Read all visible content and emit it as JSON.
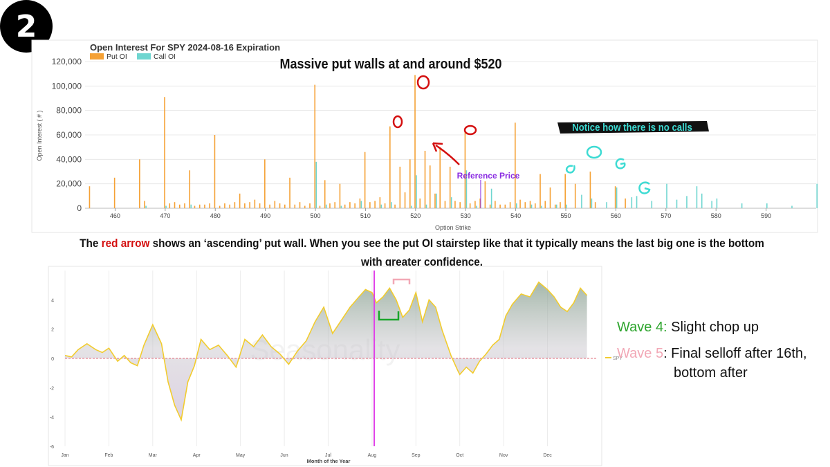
{
  "badge": "2",
  "oi_chart": {
    "title": "Open Interest For SPY 2024-08-16 Expiration",
    "legend": [
      {
        "name": "Put OI",
        "color": "#f5a135"
      },
      {
        "name": "Call OI",
        "color": "#6fd6d0"
      }
    ],
    "ylabel": "Open Interest ( # )",
    "xlabel": "Option Strike",
    "annotations": {
      "headline": "Massive put walls at and around $520",
      "no_calls": "Notice how there is no calls",
      "reference_price": "Reference Price"
    }
  },
  "season_chart": {
    "xlabel": "Month of the Year",
    "legend": "SPY",
    "watermark": "Seasonality"
  },
  "caption": {
    "prefix": "The ",
    "highlight": "red arrow",
    "rest": " shows an ‘ascending’ put wall. When you see the put OI stairstep like that it typically means the last big one is the bottom with greater confidence."
  },
  "waves": {
    "wave4_label": "Wave 4:",
    "wave4_text": " Slight chop up",
    "wave5_label": "Wave 5",
    "wave5_text": ": Final selloff after 16th,",
    "wave5_cont": "bottom after"
  },
  "chart_data": [
    {
      "type": "bar",
      "title": "Open Interest For SPY 2024-08-16 Expiration",
      "xlabel": "Option Strike",
      "ylabel": "Open Interest ( # )",
      "xlim": [
        454,
        600
      ],
      "ylim": [
        0,
        120000
      ],
      "x_ticks": [
        460,
        470,
        480,
        490,
        500,
        510,
        520,
        530,
        540,
        550,
        560,
        570,
        580,
        590
      ],
      "y_ticks": [
        0,
        20000,
        40000,
        60000,
        80000,
        100000,
        120000
      ],
      "legend_position": "top-left",
      "reference_price": 533,
      "series": [
        {
          "name": "Put OI",
          "color": "#f5a135",
          "x": [
            455,
            460,
            465,
            466,
            470,
            471,
            472,
            473,
            474,
            475,
            476,
            477,
            478,
            479,
            480,
            481,
            482,
            483,
            484,
            485,
            486,
            487,
            488,
            489,
            490,
            491,
            492,
            493,
            494,
            495,
            496,
            497,
            498,
            499,
            500,
            501,
            502,
            503,
            504,
            505,
            506,
            507,
            508,
            509,
            510,
            511,
            512,
            513,
            514,
            515,
            516,
            517,
            518,
            519,
            520,
            521,
            522,
            523,
            524,
            525,
            526,
            527,
            528,
            529,
            530,
            531,
            532,
            533,
            534,
            535,
            536,
            537,
            538,
            539,
            540,
            541,
            542,
            543,
            544,
            545,
            546,
            547,
            548,
            549,
            550,
            552,
            555,
            556,
            560,
            562
          ],
          "values": [
            18000,
            25000,
            40000,
            6000,
            91000,
            4000,
            5000,
            3000,
            4000,
            31000,
            2000,
            3000,
            3000,
            4000,
            60000,
            2000,
            4000,
            3000,
            5000,
            12000,
            4000,
            5000,
            7000,
            4000,
            40000,
            3000,
            6000,
            4000,
            3000,
            25000,
            3000,
            5000,
            2000,
            4000,
            101000,
            2000,
            23000,
            4000,
            5000,
            20000,
            3000,
            5000,
            4000,
            8000,
            46000,
            5000,
            6000,
            9000,
            4000,
            67000,
            3000,
            34000,
            13000,
            40000,
            109000,
            8000,
            47000,
            35000,
            12000,
            50000,
            6000,
            34000,
            6000,
            5000,
            63000,
            4000,
            6000,
            8000,
            22000,
            3000,
            6000,
            3000,
            3000,
            5000,
            70000,
            7000,
            5000,
            6000,
            4000,
            28000,
            6000,
            17000,
            3000,
            5000,
            28000,
            20000,
            30000,
            5000,
            18000,
            8000
          ]
        },
        {
          "name": "Call OI",
          "color": "#6fd6d0",
          "x": [
            466,
            470,
            475,
            500,
            502,
            505,
            509,
            513,
            515,
            519,
            520,
            522,
            524,
            527,
            530,
            532,
            535,
            540,
            543,
            545,
            548,
            550,
            553,
            555,
            558,
            560,
            563,
            564,
            567,
            570,
            572,
            574,
            576,
            577,
            579,
            580,
            585,
            590,
            595,
            600
          ],
          "values": [
            2000,
            2000,
            3000,
            38000,
            3000,
            2000,
            6000,
            3000,
            5000,
            2000,
            27000,
            3000,
            12000,
            9000,
            31000,
            2000,
            16000,
            4000,
            3000,
            2000,
            3000,
            3000,
            11000,
            8000,
            5000,
            17000,
            9000,
            10000,
            6000,
            20000,
            7000,
            10000,
            18000,
            12000,
            6000,
            8000,
            4000,
            4000,
            2000,
            20000
          ]
        }
      ]
    },
    {
      "type": "area",
      "xlabel": "Month of the Year",
      "categories": [
        "Jan",
        "Feb",
        "Mar",
        "Apr",
        "May",
        "Jun",
        "Jul",
        "Aug",
        "Sep",
        "Oct",
        "Nov",
        "Dec"
      ],
      "y_ticks": [
        -6,
        -4,
        -2,
        0,
        2,
        4
      ],
      "ylim": [
        -6,
        6
      ],
      "legend_position": "right",
      "highlight_month": 7.05,
      "series": [
        {
          "name": "SPY",
          "color": "#f2cc2e",
          "x": [
            0,
            0.15,
            0.3,
            0.5,
            0.7,
            0.85,
            1.0,
            1.2,
            1.35,
            1.5,
            1.65,
            1.8,
            2.0,
            2.2,
            2.35,
            2.5,
            2.65,
            2.8,
            2.95,
            3.1,
            3.3,
            3.5,
            3.7,
            3.9,
            4.1,
            4.3,
            4.5,
            4.7,
            4.9,
            5.1,
            5.3,
            5.5,
            5.7,
            5.9,
            6.1,
            6.3,
            6.5,
            6.7,
            6.85,
            7.0,
            7.1,
            7.25,
            7.4,
            7.55,
            7.7,
            7.85,
            8.0,
            8.15,
            8.3,
            8.45,
            8.6,
            8.8,
            8.95,
            9.0,
            9.15,
            9.3,
            9.45,
            9.6,
            9.75,
            9.9,
            10.05,
            10.2,
            10.4,
            10.6,
            10.8,
            11.0,
            11.15,
            11.3,
            11.45,
            11.6,
            11.75,
            11.9
          ],
          "values": [
            0.2,
            0.1,
            0.6,
            1.0,
            0.6,
            0.4,
            0.7,
            -0.2,
            0.2,
            -0.3,
            -0.5,
            0.9,
            2.3,
            1.0,
            -1.6,
            -3.2,
            -4.2,
            -1.6,
            -0.5,
            1.3,
            0.6,
            0.9,
            0.2,
            -0.6,
            1.3,
            0.8,
            1.6,
            0.8,
            0.3,
            -0.4,
            0.5,
            1.2,
            2.5,
            3.5,
            1.7,
            2.6,
            3.5,
            4.2,
            4.7,
            4.5,
            3.8,
            4.2,
            4.8,
            4.0,
            2.8,
            3.3,
            4.5,
            2.5,
            4.0,
            3.5,
            1.9,
            0.2,
            -0.8,
            -1.1,
            -0.6,
            -1.0,
            -0.2,
            0.3,
            0.9,
            1.3,
            2.9,
            3.7,
            4.4,
            4.2,
            5.2,
            4.7,
            4.2,
            3.5,
            3.2,
            3.8,
            4.8,
            4.3
          ]
        }
      ]
    }
  ]
}
